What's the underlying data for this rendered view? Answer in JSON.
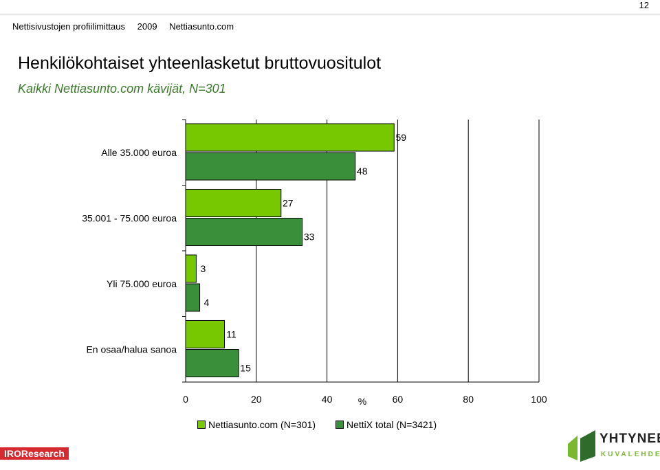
{
  "page_number": "12",
  "header": {
    "site": "Nettisivustojen profiilimittaus",
    "year": "2009",
    "brand": "Nettiasunto.com"
  },
  "title": "Henkilökohtaiset yhteenlasketut bruttovuositulot",
  "subtitle": "Kaikki Nettiasunto.com kävijät, N=301",
  "colors": {
    "series1": "#78c800",
    "series2": "#3a8f3a",
    "subtitle": "#3a7a2a",
    "iro": "#d42a30"
  },
  "chart_data": {
    "type": "bar",
    "orientation": "horizontal",
    "categories": [
      "Alle 35.000 euroa",
      "35.001 - 75.000 euroa",
      "Yli 75.000 euroa",
      "En osaa/halua sanoa"
    ],
    "series": [
      {
        "name": "Nettiasunto.com (N=301)",
        "values": [
          59,
          27,
          3,
          11
        ]
      },
      {
        "name": "NettiX total (N=3421)",
        "values": [
          48,
          33,
          4,
          15
        ]
      }
    ],
    "xlabel": "%",
    "xlim": [
      0,
      100
    ],
    "xticks": [
      "0",
      "20",
      "40",
      "60",
      "80",
      "100"
    ],
    "grid": true,
    "legend_position": "bottom"
  },
  "footer": {
    "left_logo": "IROResearch",
    "right_logo_line1": "YHTYNEET",
    "right_logo_line2": "KUVALEHDET"
  }
}
